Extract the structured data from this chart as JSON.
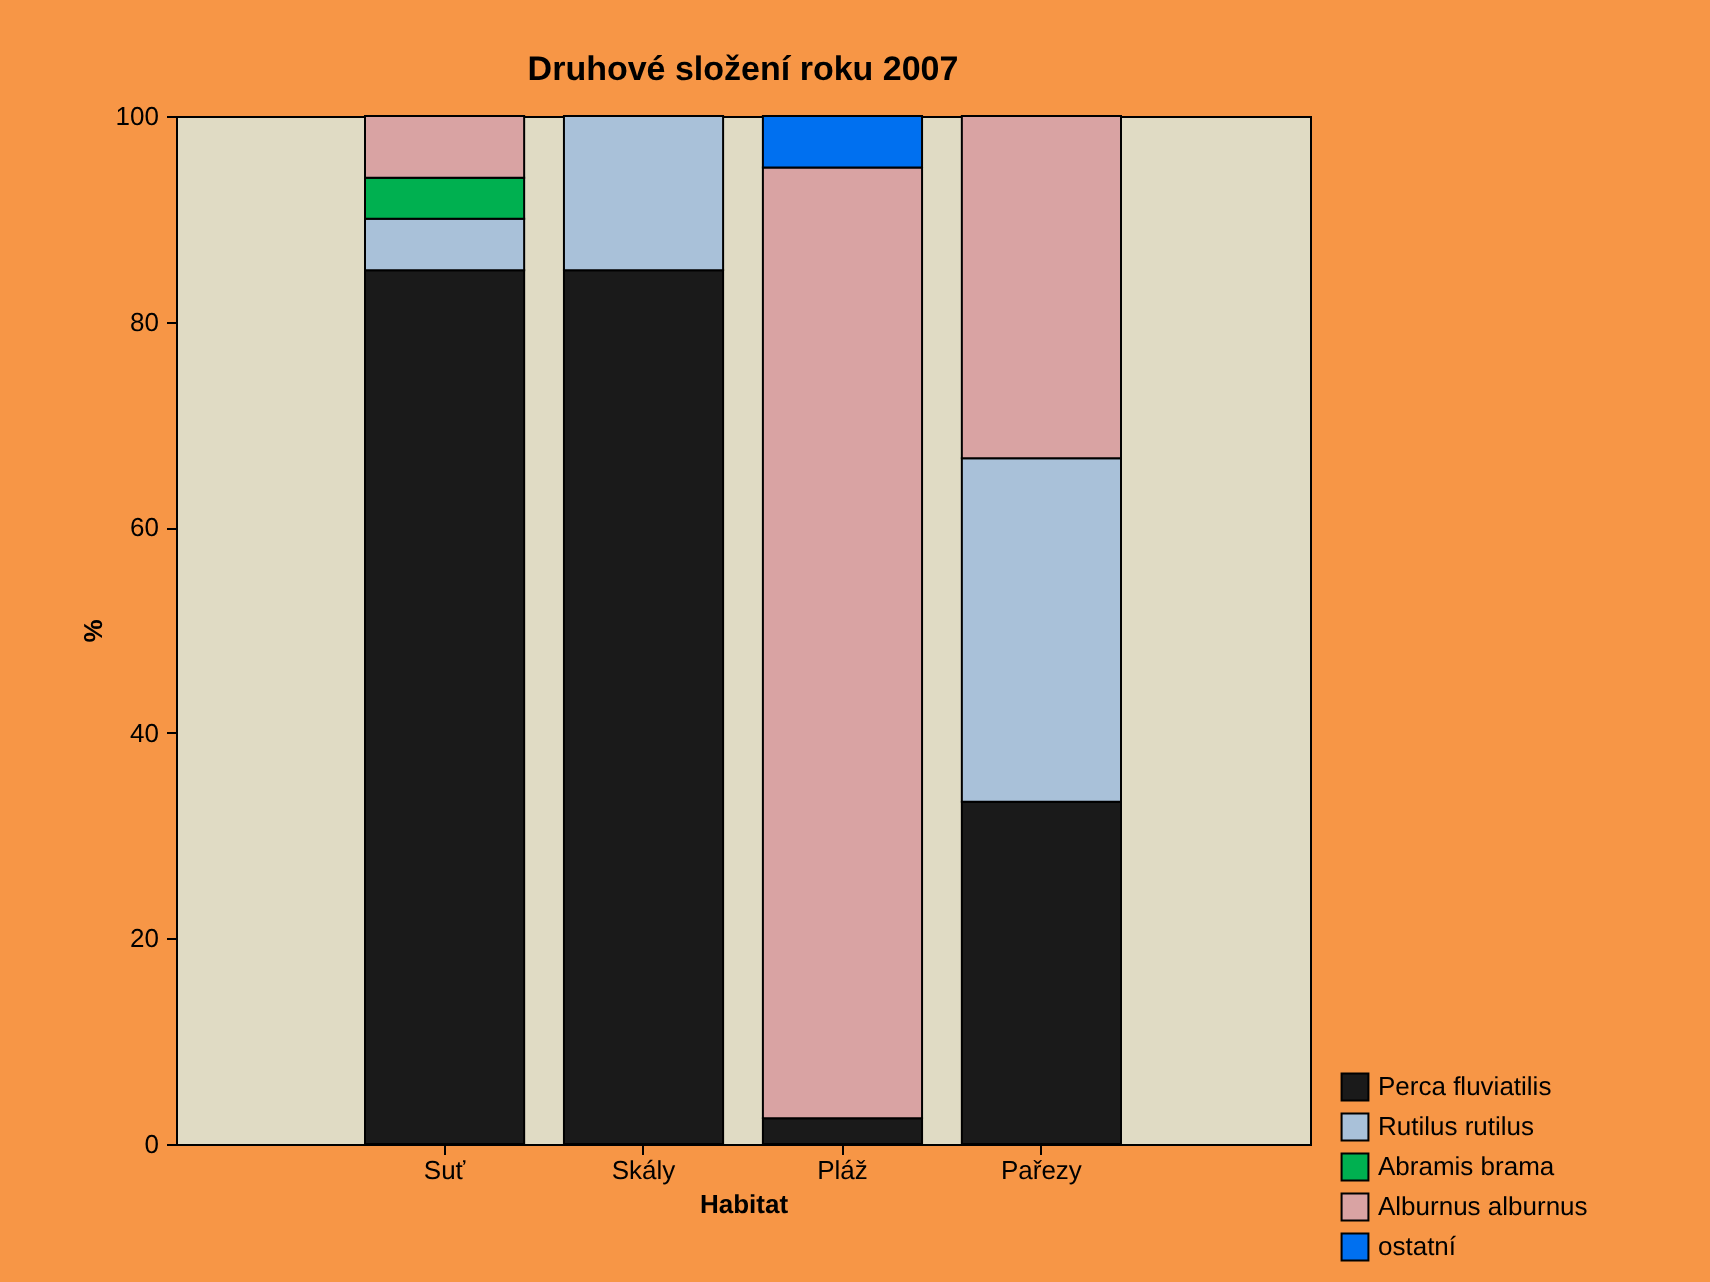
{
  "chart_data": {
    "type": "bar",
    "stacked": true,
    "title": "Druhové složení roku 2007",
    "xlabel": "Habitat",
    "ylabel": "%",
    "categories": [
      "Suť",
      "Skály",
      "Pláž",
      "Pařezy"
    ],
    "series": [
      {
        "name": "Perca fluviatilis",
        "color": "#1a1a1a",
        "values": [
          85,
          85,
          2.5,
          33.3
        ]
      },
      {
        "name": "Rutilus rutilus",
        "color": "#a9c1d9",
        "values": [
          5,
          15,
          null,
          33.4
        ]
      },
      {
        "name": "Abramis brama",
        "color": "#00b050",
        "values": [
          4,
          null,
          null,
          null
        ]
      },
      {
        "name": "Alburnus alburnus",
        "color": "#d9a3a3",
        "values": [
          6,
          null,
          92.5,
          33.3
        ]
      },
      {
        "name": "ostatní",
        "color": "#0070f0",
        "values": [
          null,
          null,
          5,
          null
        ]
      }
    ],
    "ylim": [
      0,
      100
    ],
    "yticks": [
      0,
      20,
      40,
      60,
      80,
      100
    ],
    "legend": "bottom right"
  }
}
